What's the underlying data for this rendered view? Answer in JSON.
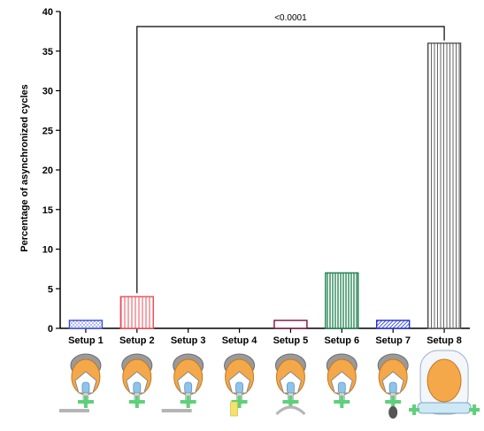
{
  "chart_data": {
    "type": "bar",
    "title": "",
    "xlabel": "",
    "ylabel": "Percentage of asynchronized cycles",
    "ylim": [
      0,
      40
    ],
    "yticks": [
      0,
      5,
      10,
      15,
      20,
      25,
      30,
      35,
      40
    ],
    "categories": [
      "Setup 1",
      "Setup 2",
      "Setup 3",
      "Setup 4",
      "Setup 5",
      "Setup 6",
      "Setup 7",
      "Setup 8"
    ],
    "values": [
      1,
      4,
      0,
      0,
      1,
      7,
      1,
      36
    ],
    "series_colors": [
      "#3b4fd6",
      "#e8505b",
      "#888888",
      "#888888",
      "#7b1040",
      "#1e7f4e",
      "#1f2fd8",
      "#555555"
    ],
    "grid": false,
    "legend": "none",
    "significance": {
      "from": "Setup 2",
      "to": "Setup 8",
      "label": "<0.0001"
    },
    "setup_images": [
      "mask-setup-1-icon",
      "mask-setup-2-icon",
      "mask-setup-3-icon",
      "mask-setup-4-icon",
      "mask-setup-5-icon",
      "mask-setup-6-icon",
      "mask-setup-7-icon",
      "helmet-setup-8-icon"
    ]
  }
}
